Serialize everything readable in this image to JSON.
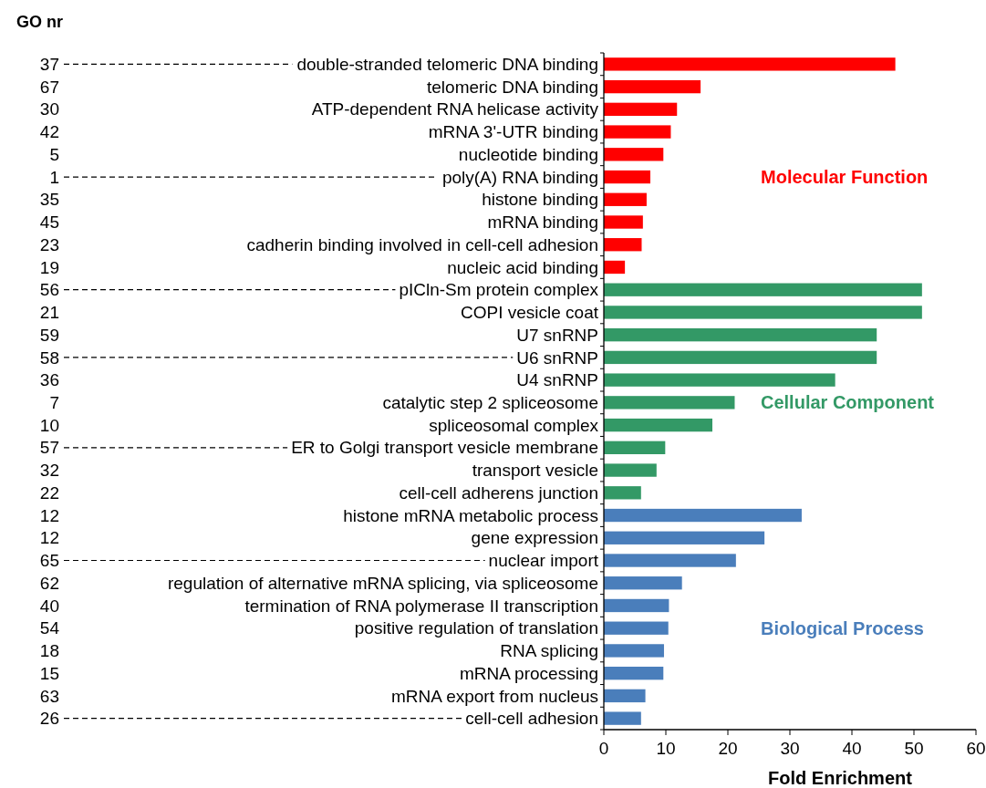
{
  "chart_data": {
    "type": "bar",
    "orientation": "horizontal",
    "xlabel": "Fold Enrichment",
    "xlim": [
      0,
      60
    ],
    "xticks": [
      0,
      10,
      20,
      30,
      40,
      50,
      60
    ],
    "categories": [
      "double-stranded telomeric DNA binding",
      "telomeric DNA binding",
      "ATP-dependent RNA helicase activity",
      "mRNA 3'-UTR binding",
      "nucleotide binding",
      "poly(A) RNA binding",
      "histone binding",
      "mRNA binding",
      "cadherin binding involved in cell-cell adhesion",
      "nucleic acid binding",
      "pICln-Sm protein complex",
      "COPI vesicle coat",
      "U7 snRNP",
      "U6 snRNP",
      "U4 snRNP",
      "catalytic step 2 spliceosome",
      "spliceosomal complex",
      "ER to Golgi transport vesicle membrane",
      "transport vesicle",
      "cell-cell adherens junction",
      "histone mRNA metabolic process",
      "gene expression",
      "nuclear import",
      "regulation of alternative mRNA splicing, via spliceosome",
      "termination of RNA polymerase II transcription",
      "positive regulation of translation",
      "RNA splicing",
      "mRNA processing",
      "mRNA export from nucleus",
      "cell-cell adhesion"
    ],
    "series": [
      {
        "name": "Molecular Function",
        "color": "#ff0000",
        "values": [
          47.0,
          15.6,
          11.8,
          10.8,
          9.6,
          7.5,
          6.9,
          6.3,
          6.1,
          3.4,
          null,
          null,
          null,
          null,
          null,
          null,
          null,
          null,
          null,
          null,
          null,
          null,
          null,
          null,
          null,
          null,
          null,
          null,
          null,
          null
        ]
      },
      {
        "name": "Cellular Component",
        "color": "#339966",
        "values": [
          null,
          null,
          null,
          null,
          null,
          null,
          null,
          null,
          null,
          null,
          51.3,
          51.3,
          44.0,
          44.0,
          37.3,
          21.1,
          17.5,
          9.9,
          8.5,
          6.0,
          null,
          null,
          null,
          null,
          null,
          null,
          null,
          null,
          null,
          null
        ]
      },
      {
        "name": "Biological Process",
        "color": "#4a7ebb",
        "values": [
          null,
          null,
          null,
          null,
          null,
          null,
          null,
          null,
          null,
          null,
          null,
          null,
          null,
          null,
          null,
          null,
          null,
          null,
          null,
          null,
          31.9,
          25.9,
          21.3,
          12.6,
          10.5,
          10.4,
          9.7,
          9.6,
          6.7,
          6.0
        ]
      }
    ],
    "annotations": [
      "GO nr",
      "37",
      "67",
      "30",
      "42",
      "5",
      "1",
      "35",
      "45",
      "23",
      "19",
      "56",
      "21",
      "59",
      "58",
      "36",
      "7",
      "10",
      "57",
      "32",
      "22",
      "12",
      "12",
      "65",
      "62",
      "40",
      "54",
      "18",
      "15",
      "63",
      "26"
    ]
  }
}
